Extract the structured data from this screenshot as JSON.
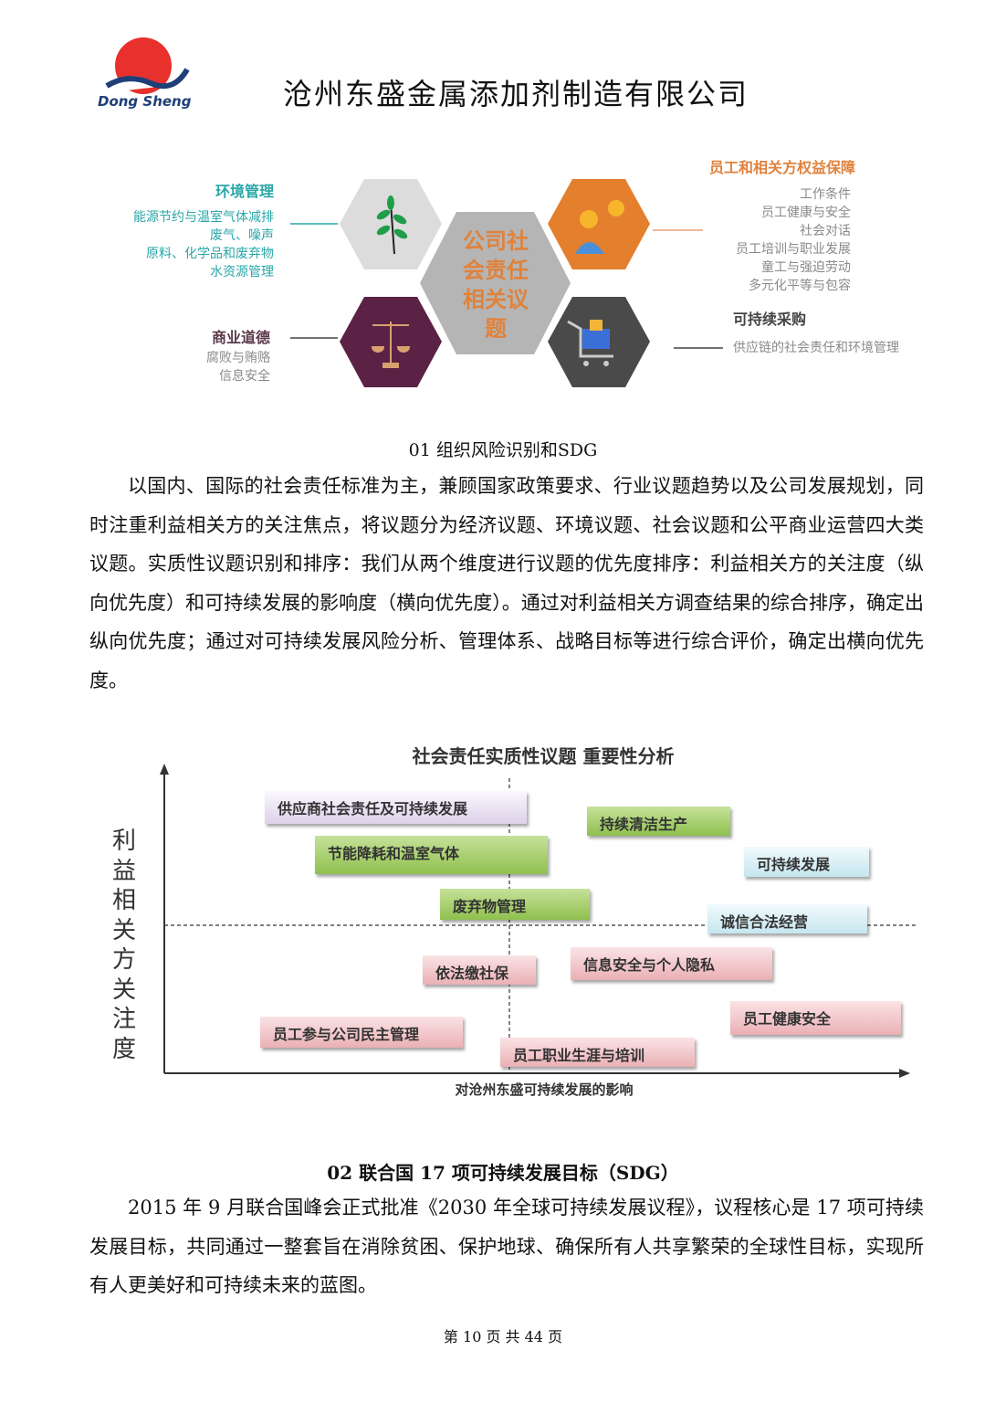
{
  "header": {
    "logo_text": "Dong Sheng",
    "company_name": "沧州东盛金属添加剂制造有限公司"
  },
  "csr_diagram": {
    "center": [
      "公司社",
      "会责任",
      "相关议",
      "题"
    ],
    "environment": {
      "title": "环境管理",
      "items": [
        "能源节约与温室气体减排",
        "废气、噪声",
        "原料、化学品和废弃物",
        "水资源管理"
      ],
      "icon": "leaf-icon"
    },
    "ethics": {
      "title": "商业道德",
      "items": [
        "腐败与贿赂",
        "信息安全"
      ],
      "icon": "scale-icon"
    },
    "employees": {
      "title": "员工和相关方权益保障",
      "items": [
        "工作条件",
        "员工健康与安全",
        "社会对话",
        "员工培训与职业发展",
        "童工与强迫劳动",
        "多元化平等与包容"
      ],
      "icon": "employee-icon"
    },
    "procurement": {
      "title": "可持续采购",
      "items": [
        "供应链的社会责任和环境管理"
      ],
      "icon": "shopping-cart-icon"
    },
    "colors": {
      "env": "#d9d9d9",
      "center": "#b3b3b3",
      "employee": "#e67e22",
      "ethics": "#5b2245",
      "procurement": "#4a4a4a",
      "accent_text": "#e0823c"
    }
  },
  "section1": {
    "caption": "01 组织风险识别和SDG",
    "paragraph": "以国内、国际的社会责任标准为主，兼顾国家政策要求、行业议题趋势以及公司发展规划，同时注重利益相关方的关注焦点，将议题分为经济议题、环境议题、社会议题和公平商业运营四大类议题。实质性议题识别和排序：我们从两个维度进行议题的优先度排序：利益相关方的关注度（纵向优先度）和可持续发展的影响度（横向优先度）。通过对利益相关方调查结果的综合排序，确定出纵向优先度；通过对可持续发展风险分析、管理体系、战略目标等进行综合评价，确定出横向优先度。"
  },
  "matrix": {
    "title": "社会责任实质性议题 重要性分析",
    "xlabel": "对沧州东盛可持续发展的影响",
    "ylabel": [
      "利",
      "益",
      "相",
      "关",
      "方",
      "关",
      "注",
      "度"
    ],
    "items": [
      "供应商社会责任及可持续发展",
      "持续清洁生产",
      "节能降耗和温室气体",
      "可持续发展",
      "废弃物管理",
      "诚信合法经营",
      "依法缴社保",
      "信息安全与个人隐私",
      "员工健康安全",
      "员工参与公司民主管理",
      "员工职业生涯与培训"
    ]
  },
  "section2": {
    "heading": "02 联合国 17 项可持续发展目标（SDG）",
    "paragraph": "2015 年 9 月联合国峰会正式批准《2030 年全球可持续发展议程》，议程核心是 17 项可持续发展目标，共同通过一整套旨在消除贫困、保护地球、确保所有人共享繁荣的全球性目标，实现所有人更美好和可持续未来的蓝图。"
  },
  "footer": {
    "page_label": "第 10 页 共 44 页"
  }
}
